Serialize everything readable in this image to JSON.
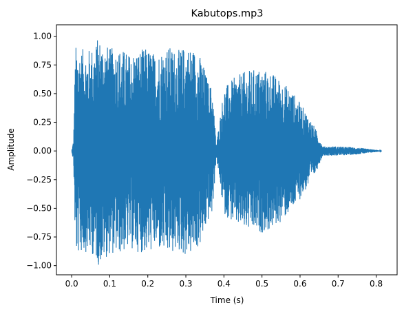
{
  "chart_data": {
    "type": "line",
    "title": "Kabutops.mp3",
    "xlabel": "Time (s)",
    "ylabel": "Amplitude",
    "xlim": [
      -0.04,
      0.855
    ],
    "ylim": [
      -1.08,
      1.1
    ],
    "xticks": [
      0.0,
      0.1,
      0.2,
      0.3,
      0.4,
      0.5,
      0.6,
      0.7,
      0.8
    ],
    "xtick_labels": [
      "0.0",
      "0.1",
      "0.2",
      "0.3",
      "0.4",
      "0.5",
      "0.6",
      "0.7",
      "0.8"
    ],
    "yticks": [
      1.0,
      0.75,
      0.5,
      0.25,
      0.0,
      -0.25,
      -0.5,
      -0.75,
      -1.0
    ],
    "ytick_labels": [
      "1.00",
      "0.75",
      "0.50",
      "0.25",
      "0.00",
      "−0.25",
      "−0.50",
      "−0.75",
      "−1.00"
    ],
    "grid": false,
    "color": "#1f77b4",
    "series": [
      {
        "envelope_time": [
          0.0,
          0.005,
          0.01,
          0.02,
          0.04,
          0.06,
          0.07,
          0.1,
          0.13,
          0.15,
          0.17,
          0.2,
          0.22,
          0.25,
          0.28,
          0.3,
          0.32,
          0.34,
          0.36,
          0.37,
          0.38,
          0.4,
          0.43,
          0.46,
          0.49,
          0.52,
          0.55,
          0.58,
          0.6,
          0.62,
          0.64,
          0.655,
          0.66,
          0.7,
          0.75,
          0.8,
          0.815
        ],
        "envelope_amplitude": [
          0.0,
          0.1,
          0.92,
          0.9,
          0.88,
          0.92,
          1.0,
          0.9,
          0.9,
          0.85,
          0.88,
          0.9,
          0.85,
          0.92,
          0.88,
          0.92,
          0.9,
          0.82,
          0.6,
          0.55,
          0.05,
          0.55,
          0.65,
          0.7,
          0.72,
          0.7,
          0.62,
          0.52,
          0.42,
          0.32,
          0.2,
          0.08,
          0.04,
          0.04,
          0.03,
          0.01,
          0.0
        ]
      }
    ]
  }
}
